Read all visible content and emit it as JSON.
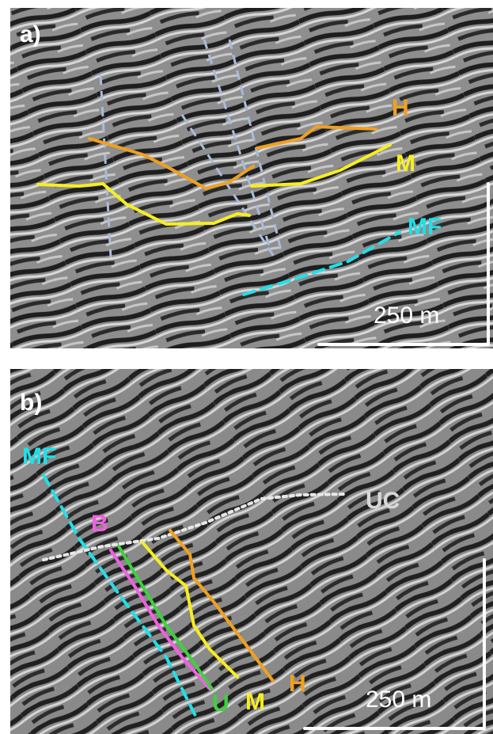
{
  "panels": [
    {
      "label": "a)",
      "annotations": {
        "h": "H",
        "m": "M",
        "mf": "MF"
      },
      "scale_bar": "250 m"
    },
    {
      "label": "b)",
      "annotations": {
        "mf": "MF",
        "b": "B",
        "uc": "UC",
        "u": "U",
        "m": "M",
        "h": "H"
      },
      "scale_bar": "250 m"
    }
  ]
}
